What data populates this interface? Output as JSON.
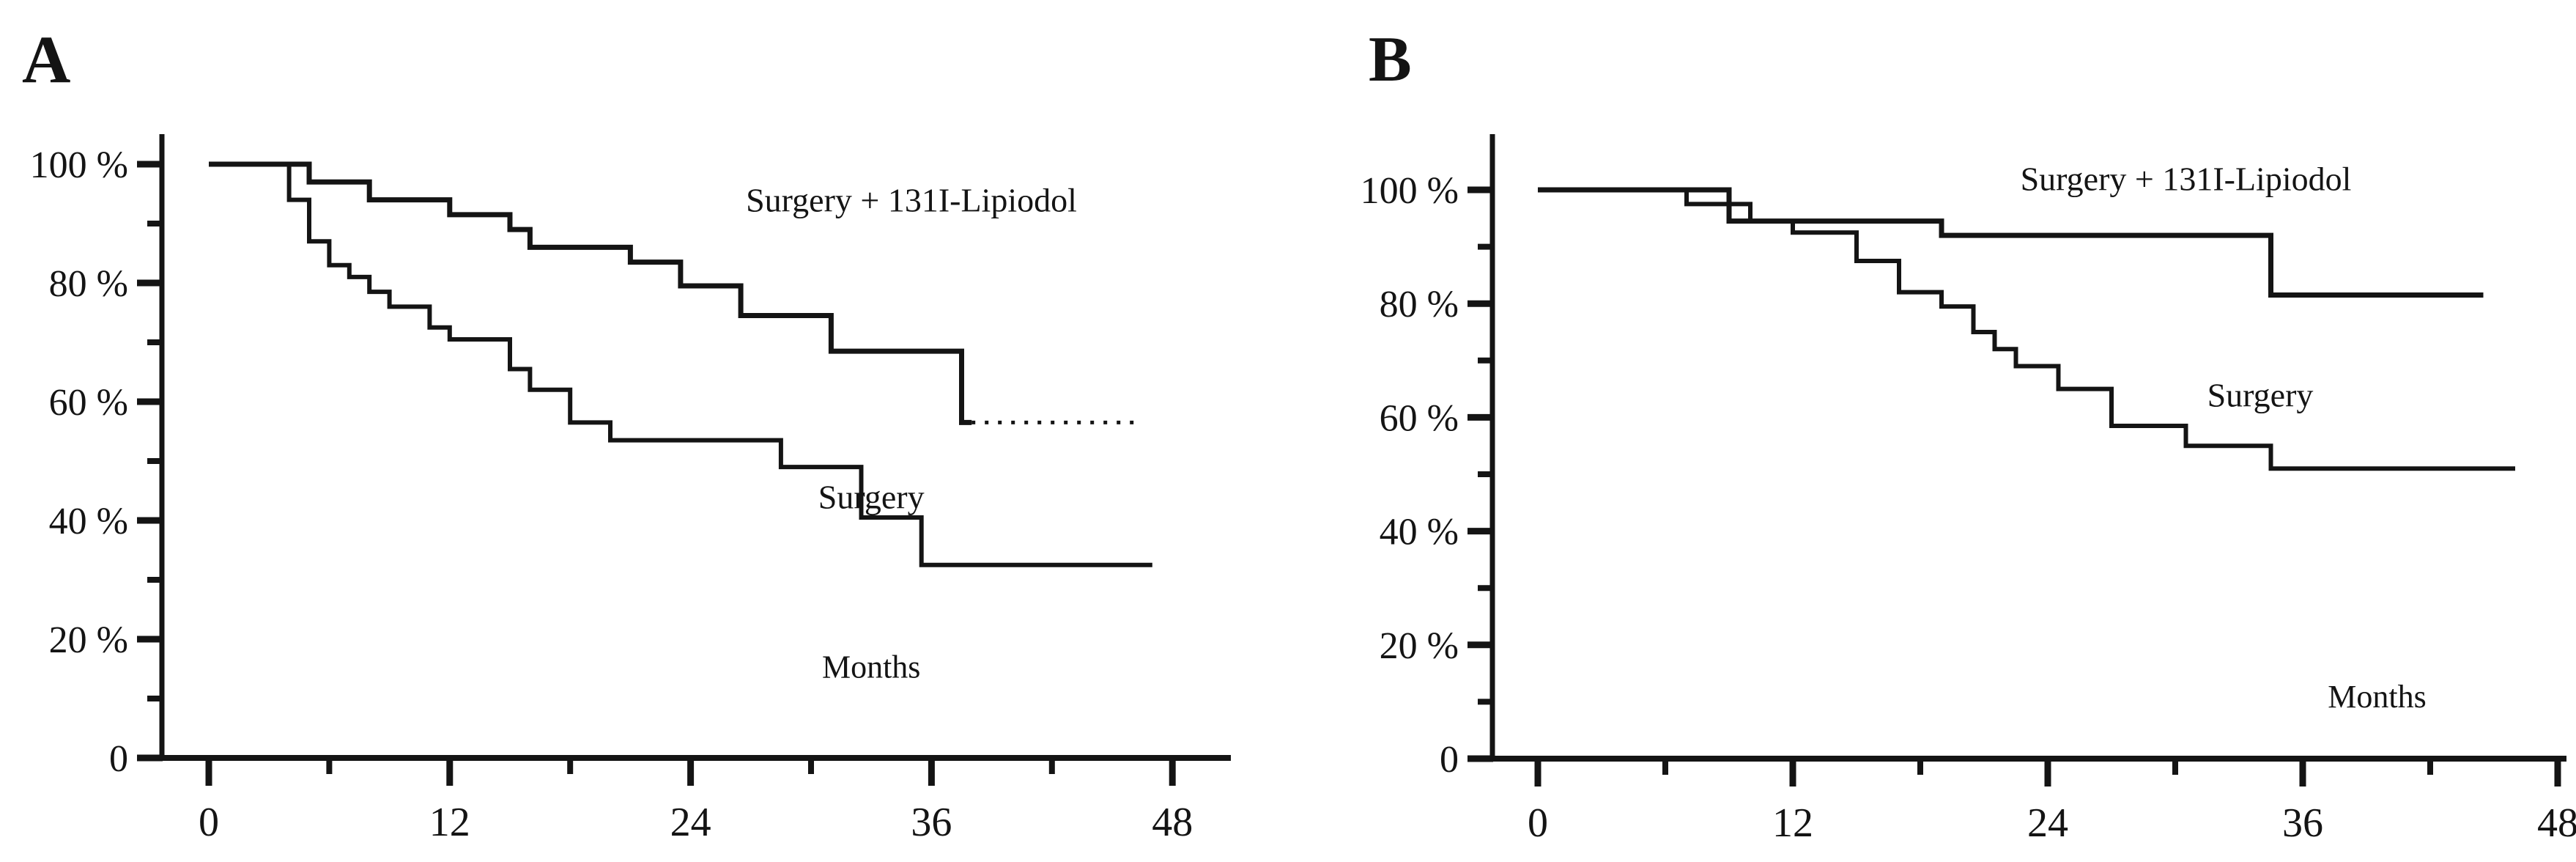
{
  "figure": {
    "background": "#ffffff",
    "ink": "#141414",
    "xlabel_text": "Months"
  },
  "chart_data": [
    {
      "id": "panel-a",
      "type": "line",
      "subtype": "kaplan-meier-step",
      "panel_letter": "A",
      "title": "",
      "xlabel": "Months",
      "ylabel": "",
      "xlim": [
        0,
        50
      ],
      "ylim": [
        0,
        105
      ],
      "grid": false,
      "legend_position": "inline-annotations",
      "x_ticks": [
        {
          "value": 0,
          "label": "0"
        },
        {
          "value": 12,
          "label": "12"
        },
        {
          "value": 24,
          "label": "24"
        },
        {
          "value": 36,
          "label": "36"
        },
        {
          "value": 48,
          "label": "48"
        }
      ],
      "x_minor_ticks": [
        6,
        18,
        30,
        42
      ],
      "y_ticks": [
        {
          "value": 100,
          "label": "100 %"
        },
        {
          "value": 80,
          "label": "80 %"
        },
        {
          "value": 60,
          "label": "60 %"
        },
        {
          "value": 40,
          "label": "40 %"
        },
        {
          "value": 20,
          "label": "20 %"
        },
        {
          "value": 0,
          "label": "0"
        }
      ],
      "y_minor_ticks": [
        90,
        70,
        50,
        30,
        10
      ],
      "months_label": {
        "text": "Months",
        "at": [
          33,
          13.5
        ]
      },
      "series": [
        {
          "name": "Surgery + 131I-Lipiodol",
          "points": [
            [
              0,
              100
            ],
            [
              5,
              97
            ],
            [
              8,
              94
            ],
            [
              12,
              91.5
            ],
            [
              15,
              89
            ],
            [
              16,
              86
            ],
            [
              21,
              83.5
            ],
            [
              23.5,
              79.5
            ],
            [
              26.5,
              74.5
            ],
            [
              31,
              68.5
            ],
            [
              37.5,
              56.5
            ]
          ],
          "end_month": 38,
          "tail": {
            "style": "dotted",
            "to_month": 46.5
          },
          "stroke_width": 7,
          "label": {
            "text": "Surgery + 131I-Lipiodol",
            "at": [
              35,
              94
            ]
          }
        },
        {
          "name": "Surgery",
          "points": [
            [
              0,
              100
            ],
            [
              4,
              94
            ],
            [
              5,
              87
            ],
            [
              6,
              83
            ],
            [
              7,
              81
            ],
            [
              8,
              78.5
            ],
            [
              9,
              76
            ],
            [
              11,
              72.5
            ],
            [
              12,
              70.5
            ],
            [
              15,
              65.5
            ],
            [
              16,
              62
            ],
            [
              18,
              56.5
            ],
            [
              20,
              53.5
            ],
            [
              28.5,
              49
            ],
            [
              32.5,
              40.5
            ],
            [
              35.5,
              32.5
            ]
          ],
          "end_month": 47,
          "tail": null,
          "stroke_width": 6,
          "label": {
            "text": "Surgery",
            "at": [
              33,
              44
            ]
          }
        }
      ]
    },
    {
      "id": "panel-b",
      "type": "line",
      "subtype": "kaplan-meier-step",
      "panel_letter": "B",
      "title": "",
      "xlabel": "Months",
      "ylabel": "",
      "xlim": [
        0,
        50
      ],
      "ylim": [
        0,
        109
      ],
      "grid": false,
      "legend_position": "inline-annotations",
      "x_ticks": [
        {
          "value": 0,
          "label": "0"
        },
        {
          "value": 12,
          "label": "12"
        },
        {
          "value": 24,
          "label": "24"
        },
        {
          "value": 36,
          "label": "36"
        },
        {
          "value": 48,
          "label": "48"
        }
      ],
      "x_minor_ticks": [
        6,
        18,
        30,
        42
      ],
      "y_ticks": [
        {
          "value": 100,
          "label": "100 %"
        },
        {
          "value": 80,
          "label": "80 %"
        },
        {
          "value": 60,
          "label": "60 %"
        },
        {
          "value": 40,
          "label": "40 %"
        },
        {
          "value": 20,
          "label": "20 %"
        },
        {
          "value": 0,
          "label": "0"
        }
      ],
      "y_minor_ticks": [
        90,
        70,
        50,
        30,
        10
      ],
      "months_label": {
        "text": "Months",
        "at": [
          39.5,
          9
        ]
      },
      "series": [
        {
          "name": "Surgery + 131I-Lipiodol",
          "points": [
            [
              0,
              100
            ],
            [
              9,
              94.5
            ],
            [
              19,
              92
            ],
            [
              34.5,
              81.5
            ]
          ],
          "end_month": 44.5,
          "tail": null,
          "stroke_width": 7,
          "label": {
            "text": "Surgery + 131I-Lipiodol",
            "at": [
              30.5,
              102
            ]
          }
        },
        {
          "name": "Surgery",
          "points": [
            [
              0,
              100
            ],
            [
              7,
              97.5
            ],
            [
              10,
              94.5
            ],
            [
              12,
              92.5
            ],
            [
              15,
              87.5
            ],
            [
              17,
              82
            ],
            [
              19,
              79.5
            ],
            [
              20.5,
              75
            ],
            [
              21.5,
              72
            ],
            [
              22.5,
              69
            ],
            [
              24.5,
              65
            ],
            [
              27,
              58.5
            ],
            [
              30.5,
              55
            ],
            [
              34.5,
              51
            ]
          ],
          "end_month": 46,
          "tail": null,
          "stroke_width": 6,
          "label": {
            "text": "Surgery",
            "at": [
              34,
              64
            ]
          }
        }
      ]
    }
  ]
}
